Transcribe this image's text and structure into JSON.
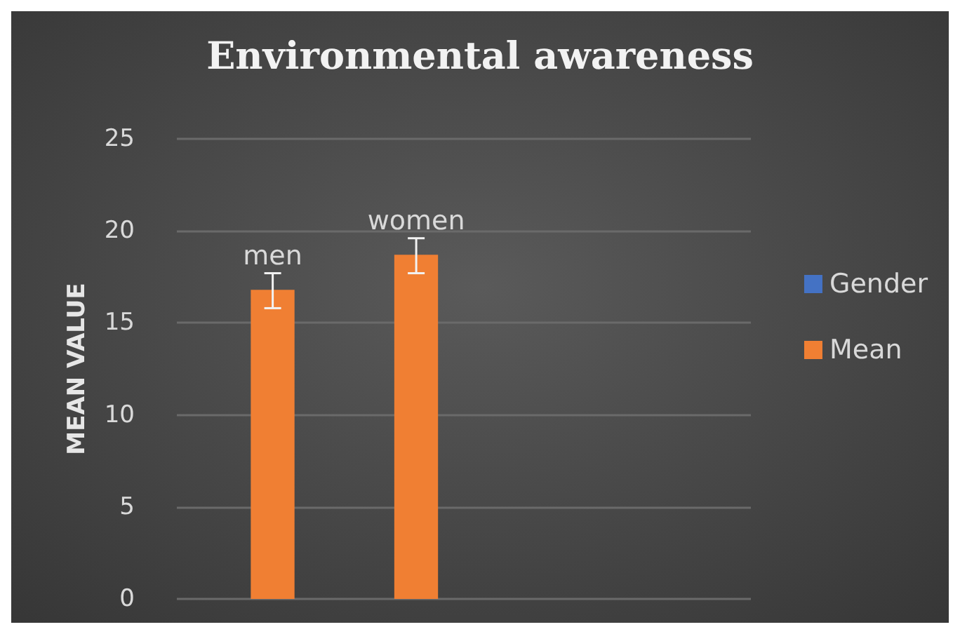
{
  "chart_data": {
    "type": "bar",
    "title": "Environmental awareness",
    "ylabel": "MEAN VALUE",
    "categories": [
      null,
      null,
      null,
      null
    ],
    "series": [
      {
        "name": "Gender",
        "color": "#4472c4",
        "values": [
          null,
          null,
          null,
          null
        ]
      },
      {
        "name": "Mean",
        "color": "#f07f33",
        "values": [
          16.8,
          18.7,
          null,
          null
        ],
        "errors": [
          [
            15.8,
            17.7
          ],
          [
            17.7,
            19.6
          ],
          null,
          null
        ],
        "value_labels": [
          "men",
          "women",
          null,
          null
        ]
      }
    ],
    "ylim": [
      0,
      25
    ],
    "yticks": [
      0,
      5,
      10,
      15,
      20,
      25
    ],
    "grid": "y",
    "legend": "right"
  }
}
